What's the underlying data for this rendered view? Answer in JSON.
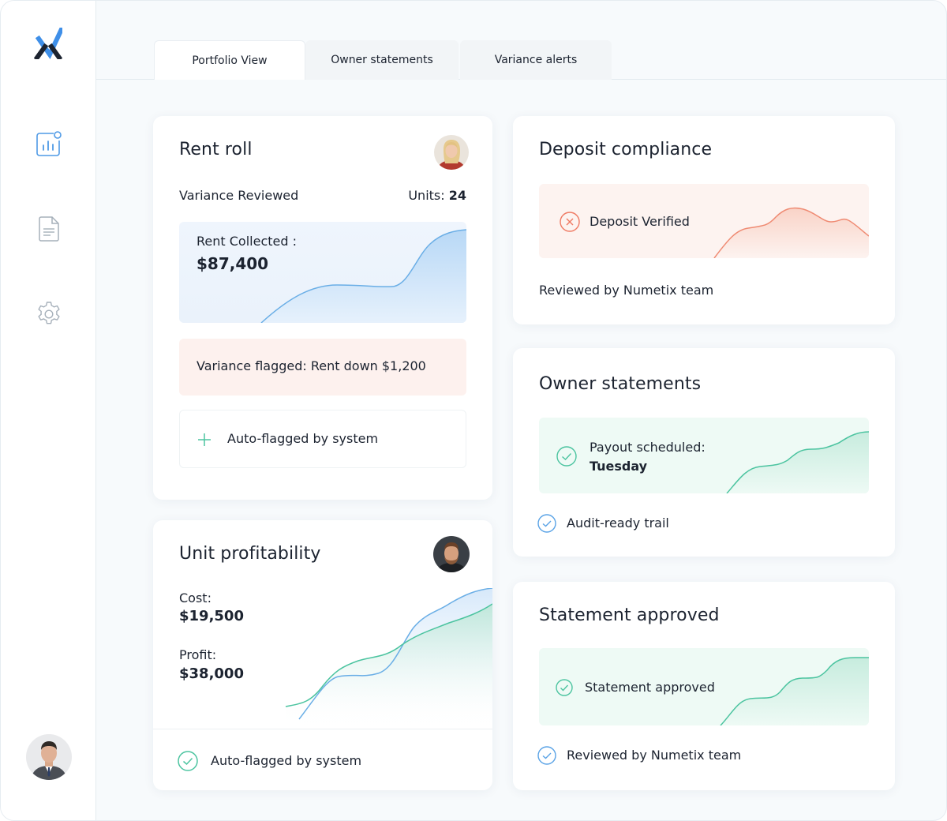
{
  "colors": {
    "brand_blue": "#3f8fe8",
    "brand_dark": "#1c2330",
    "green": "#4cc4a0",
    "red": "#ef7a63",
    "blue_line": "#6aaee6"
  },
  "sidebar": {
    "logo": "numetix-logo-icon",
    "items": [
      {
        "icon": "dashboard-chart-icon",
        "active": true
      },
      {
        "icon": "document-icon",
        "active": false
      },
      {
        "icon": "gear-icon",
        "active": false
      }
    ],
    "user": "user-avatar"
  },
  "tabs": [
    {
      "label": "Portfolio View",
      "active": true
    },
    {
      "label": "Owner statements",
      "active": false
    },
    {
      "label": "Variance alerts",
      "active": false
    }
  ],
  "rent_roll": {
    "title": "Rent roll",
    "status": "Variance Reviewed",
    "units_label": "Units:",
    "units_value": "24",
    "collected_label": "Rent Collected :",
    "collected_value": "$87,400",
    "variance_text": "Variance flagged: Rent down $1,200",
    "auto_flag_text": "Auto-flagged by system"
  },
  "unit_profitability": {
    "title": "Unit profitability",
    "cost_label": "Cost:",
    "cost_value": "$19,500",
    "profit_label": "Profit:",
    "profit_value": "$38,000",
    "footer_text": "Auto-flagged by system"
  },
  "deposit_compliance": {
    "title": "Deposit compliance",
    "status_text": "Deposit Verified",
    "footer_text": "Reviewed by Numetix team"
  },
  "owner_statements": {
    "title": "Owner statements",
    "payout_label": "Payout scheduled:",
    "payout_day": "Tuesday",
    "footer_text": "Audit-ready trail"
  },
  "statement_approved": {
    "title": "Statement approved",
    "status_text": "Statement approved",
    "footer_text": "Reviewed by Numetix team"
  }
}
